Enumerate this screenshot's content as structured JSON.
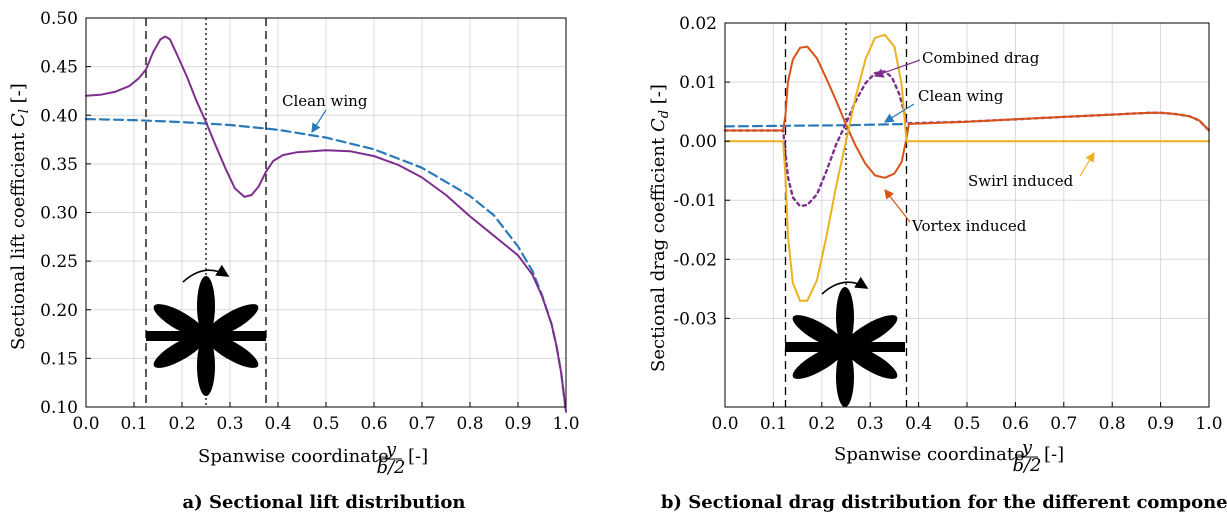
{
  "colors": {
    "clean": "#2a7ab9",
    "combined": "#7e2f8e",
    "vortex": "#d95319",
    "swirl": "#edb120",
    "lift": "#7e2f8e"
  },
  "captions": {
    "a": "a) Sectional lift distribution",
    "b": "b) Sectional drag distribution for the different components"
  },
  "chart_data": [
    {
      "type": "line",
      "title": "",
      "xlabel": "Spanwise coordinate y/(b/2) [-]",
      "ylabel": "Sectional lift coefficient C_l [-]",
      "xlim": [
        0,
        1
      ],
      "ylim": [
        0.1,
        0.5
      ],
      "grid": true,
      "x_ticks": [
        "0.0",
        "0.1",
        "0.2",
        "0.3",
        "0.4",
        "0.5",
        "0.6",
        "0.7",
        "0.8",
        "0.9",
        "1.0"
      ],
      "y_ticks": [
        "0.10",
        "0.15",
        "0.20",
        "0.25",
        "0.30",
        "0.35",
        "0.40",
        "0.45",
        "0.50"
      ],
      "vlines": {
        "dashed": [
          0.125,
          0.375
        ],
        "dotted": [
          0.25
        ]
      },
      "annotations": [
        {
          "text": "Clean wing",
          "series": "Clean wing"
        }
      ],
      "series": [
        {
          "name": "Clean wing",
          "style": "dashed",
          "points": [
            [
              0,
              0.396
            ],
            [
              0.1,
              0.395
            ],
            [
              0.2,
              0.393
            ],
            [
              0.3,
              0.39
            ],
            [
              0.4,
              0.385
            ],
            [
              0.5,
              0.377
            ],
            [
              0.6,
              0.365
            ],
            [
              0.7,
              0.346
            ],
            [
              0.8,
              0.317
            ],
            [
              0.85,
              0.297
            ],
            [
              0.9,
              0.265
            ],
            [
              0.93,
              0.24
            ],
            [
              0.95,
              0.215
            ],
            [
              0.97,
              0.185
            ],
            [
              0.98,
              0.163
            ],
            [
              0.99,
              0.135
            ],
            [
              1.0,
              0.095
            ]
          ]
        },
        {
          "name": "",
          "style": "solid",
          "points": [
            [
              0,
              0.42
            ],
            [
              0.03,
              0.421
            ],
            [
              0.06,
              0.424
            ],
            [
              0.09,
              0.43
            ],
            [
              0.11,
              0.438
            ],
            [
              0.125,
              0.447
            ],
            [
              0.14,
              0.465
            ],
            [
              0.155,
              0.478
            ],
            [
              0.165,
              0.481
            ],
            [
              0.175,
              0.478
            ],
            [
              0.19,
              0.462
            ],
            [
              0.21,
              0.44
            ],
            [
              0.23,
              0.415
            ],
            [
              0.25,
              0.393
            ],
            [
              0.27,
              0.369
            ],
            [
              0.29,
              0.346
            ],
            [
              0.31,
              0.325
            ],
            [
              0.33,
              0.316
            ],
            [
              0.345,
              0.318
            ],
            [
              0.36,
              0.327
            ],
            [
              0.375,
              0.342
            ],
            [
              0.39,
              0.353
            ],
            [
              0.41,
              0.359
            ],
            [
              0.44,
              0.362
            ],
            [
              0.5,
              0.364
            ],
            [
              0.55,
              0.363
            ],
            [
              0.6,
              0.358
            ],
            [
              0.65,
              0.349
            ],
            [
              0.7,
              0.336
            ],
            [
              0.75,
              0.318
            ],
            [
              0.8,
              0.296
            ],
            [
              0.85,
              0.276
            ],
            [
              0.9,
              0.256
            ],
            [
              0.93,
              0.236
            ],
            [
              0.95,
              0.214
            ],
            [
              0.97,
              0.185
            ],
            [
              0.98,
              0.163
            ],
            [
              0.99,
              0.135
            ],
            [
              1.0,
              0.095
            ]
          ]
        }
      ]
    },
    {
      "type": "line",
      "title": "",
      "xlabel": "Spanwise coordinate y/(b/2) [-]",
      "ylabel": "Sectional drag coefficient C_d [-]",
      "xlim": [
        0,
        1
      ],
      "ylim": [
        -0.045,
        0.02
      ],
      "grid": true,
      "x_ticks": [
        "0.0",
        "0.1",
        "0.2",
        "0.3",
        "0.4",
        "0.5",
        "0.6",
        "0.7",
        "0.8",
        "0.9",
        "1.0"
      ],
      "y_ticks": [
        "0.02",
        "0.01",
        "0.00",
        "-0.01",
        "-0.02",
        "-0.03"
      ],
      "vlines": {
        "dashed": [
          0.125,
          0.375
        ],
        "dotted": [
          0.25
        ]
      },
      "annotations": [
        {
          "text": "Combined drag",
          "series": "Combined drag"
        },
        {
          "text": "Clean wing",
          "series": "Clean wing"
        },
        {
          "text": "Swirl induced",
          "series": "Swirl induced"
        },
        {
          "text": "Vortex induced",
          "series": "Vortex induced"
        }
      ],
      "series": [
        {
          "name": "Clean wing",
          "style": "dashed",
          "points": [
            [
              0,
              0.0025
            ],
            [
              0.125,
              0.0026
            ],
            [
              0.25,
              0.0027
            ],
            [
              0.375,
              0.0029
            ]
          ]
        },
        {
          "name": "Combined drag",
          "style": "dotted",
          "points": [
            [
              0,
              0.0018
            ],
            [
              0.12,
              0.0018
            ],
            [
              0.125,
              -0.002
            ],
            [
              0.13,
              -0.006
            ],
            [
              0.14,
              -0.0095
            ],
            [
              0.155,
              -0.011
            ],
            [
              0.17,
              -0.0108
            ],
            [
              0.19,
              -0.009
            ],
            [
              0.21,
              -0.005
            ],
            [
              0.23,
              -0.0005
            ],
            [
              0.25,
              0.003
            ],
            [
              0.27,
              0.0068
            ],
            [
              0.29,
              0.0098
            ],
            [
              0.31,
              0.0115
            ],
            [
              0.33,
              0.0118
            ],
            [
              0.345,
              0.0108
            ],
            [
              0.36,
              0.008
            ],
            [
              0.37,
              0.005
            ],
            [
              0.375,
              0.003
            ],
            [
              0.5,
              0.0033
            ],
            [
              0.6,
              0.0037
            ],
            [
              0.7,
              0.0041
            ],
            [
              0.8,
              0.0045
            ],
            [
              0.85,
              0.0047
            ],
            [
              0.88,
              0.0048
            ],
            [
              0.9,
              0.0048
            ],
            [
              0.93,
              0.0046
            ],
            [
              0.96,
              0.0042
            ],
            [
              0.98,
              0.0035
            ],
            [
              1.0,
              0.0018
            ]
          ]
        },
        {
          "name": "Vortex induced",
          "style": "solid",
          "points": [
            [
              0,
              0.0018
            ],
            [
              0.12,
              0.0018
            ],
            [
              0.125,
              0.0045
            ],
            [
              0.13,
              0.01
            ],
            [
              0.14,
              0.0138
            ],
            [
              0.155,
              0.0158
            ],
            [
              0.17,
              0.016
            ],
            [
              0.19,
              0.014
            ],
            [
              0.21,
              0.0105
            ],
            [
              0.23,
              0.0068
            ],
            [
              0.25,
              0.0028
            ],
            [
              0.27,
              -0.0008
            ],
            [
              0.29,
              -0.0038
            ],
            [
              0.31,
              -0.0058
            ],
            [
              0.33,
              -0.0062
            ],
            [
              0.35,
              -0.0055
            ],
            [
              0.365,
              -0.0035
            ],
            [
              0.375,
              0.0005
            ],
            [
              0.38,
              0.0029
            ],
            [
              0.5,
              0.0033
            ],
            [
              0.6,
              0.0037
            ],
            [
              0.7,
              0.0041
            ],
            [
              0.8,
              0.0045
            ],
            [
              0.85,
              0.0047
            ],
            [
              0.88,
              0.0048
            ],
            [
              0.9,
              0.0048
            ],
            [
              0.93,
              0.0046
            ],
            [
              0.96,
              0.0042
            ],
            [
              0.98,
              0.0035
            ],
            [
              1.0,
              0.0018
            ]
          ]
        },
        {
          "name": "Swirl induced",
          "style": "solid",
          "points": [
            [
              0,
              0.0
            ],
            [
              0.12,
              0.0
            ],
            [
              0.125,
              -0.006
            ],
            [
              0.13,
              -0.016
            ],
            [
              0.14,
              -0.024
            ],
            [
              0.155,
              -0.027
            ],
            [
              0.17,
              -0.027
            ],
            [
              0.19,
              -0.0235
            ],
            [
              0.21,
              -0.016
            ],
            [
              0.23,
              -0.0075
            ],
            [
              0.25,
              0.0
            ],
            [
              0.27,
              0.0075
            ],
            [
              0.29,
              0.0138
            ],
            [
              0.31,
              0.0175
            ],
            [
              0.33,
              0.018
            ],
            [
              0.35,
              0.016
            ],
            [
              0.365,
              0.0095
            ],
            [
              0.375,
              0.0
            ],
            [
              1.0,
              0.0
            ]
          ]
        }
      ]
    }
  ]
}
